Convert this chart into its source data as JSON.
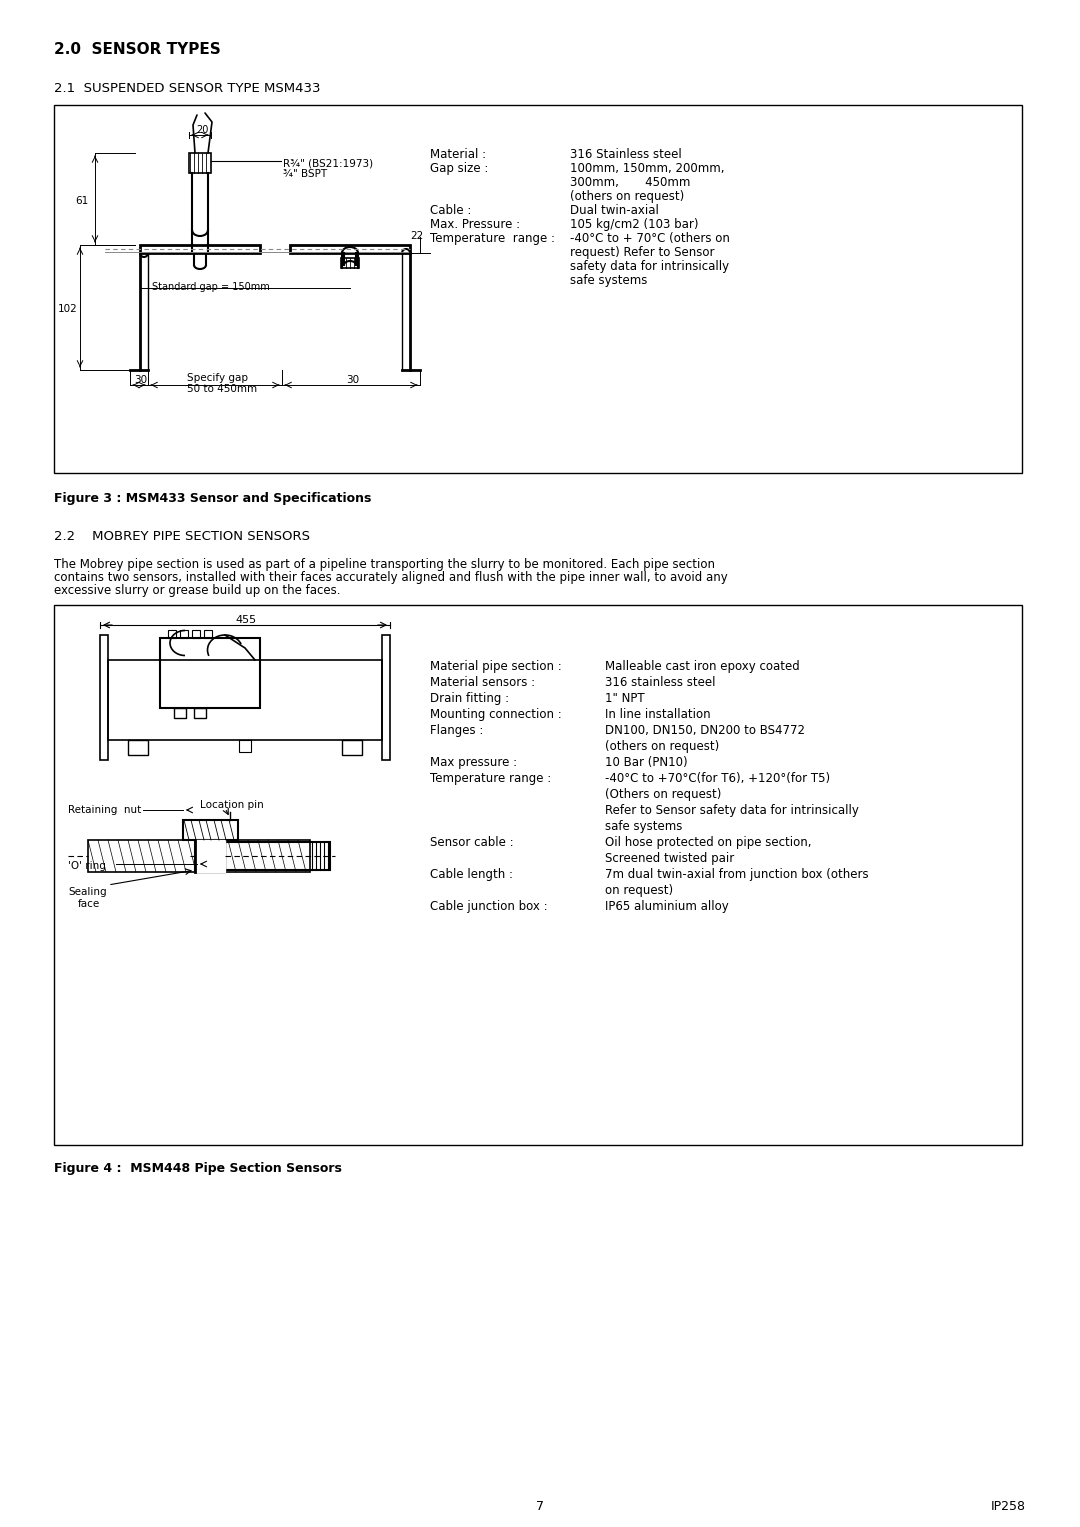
{
  "page_bg": "#ffffff",
  "heading1_bold": "2.0  SENSOR TYPES",
  "heading2": "2.1  SUSPENDED SENSOR TYPE MSM433",
  "heading3": "2.2    MOBREY PIPE SECTION SENSORS",
  "figure3_caption": "Figure 3 : MSM433 Sensor and Specifications",
  "figure4_caption": "Figure 4 :  MSM448 Pipe Section Sensors",
  "page_number": "7",
  "doc_number": "IP258",
  "para_line1": "The Mobrey pipe section is used as part of a pipeline transporting the slurry to be monitored. Each pipe section",
  "para_line2": "contains two sensors, installed with their faces accurately aligned and flush with the pipe inner wall, to avoid any",
  "para_line3": "excessive slurry or grease build up on the faces.",
  "spec1": [
    [
      "Material :",
      "316 Stainless steel"
    ],
    [
      "Gap size :",
      "100mm, 150mm, 200mm,"
    ],
    [
      "",
      "300mm,       450mm"
    ],
    [
      "",
      "(others on request)"
    ],
    [
      "Cable :",
      "Dual twin-axial"
    ],
    [
      "Max. Pressure :",
      "105 kg/cm2 (103 bar)"
    ],
    [
      "Temperature  range :",
      "-40°C to + 70°C (others on"
    ],
    [
      "",
      "request) Refer to Sensor"
    ],
    [
      "",
      "safety data for intrinsically"
    ],
    [
      "",
      "safe systems"
    ]
  ],
  "spec2": [
    [
      "Material pipe section :",
      "Malleable cast iron epoxy coated"
    ],
    [
      "Material sensors :",
      "316 stainless steel"
    ],
    [
      "Drain fitting :",
      "1\" NPT"
    ],
    [
      "Mounting connection :",
      "In line installation"
    ],
    [
      "Flanges :",
      "DN100, DN150, DN200 to BS4772"
    ],
    [
      "",
      "(others on request)"
    ],
    [
      "Max pressure :",
      "10 Bar (PN10)"
    ],
    [
      "Temperature range :",
      "-40°C to +70°C(for T6), +120°(for T5)"
    ],
    [
      "",
      "(Others on request)"
    ],
    [
      "",
      "Refer to Sensor safety data for intrinsically"
    ],
    [
      "",
      "safe systems"
    ],
    [
      "Sensor cable :",
      "Oil hose protected on pipe section,"
    ],
    [
      "",
      "Screened twisted pair"
    ],
    [
      "Cable length :",
      "7m dual twin-axial from junction box (others"
    ],
    [
      "",
      "on request)"
    ],
    [
      "Cable junction box :",
      "IP65 aluminium alloy"
    ]
  ]
}
